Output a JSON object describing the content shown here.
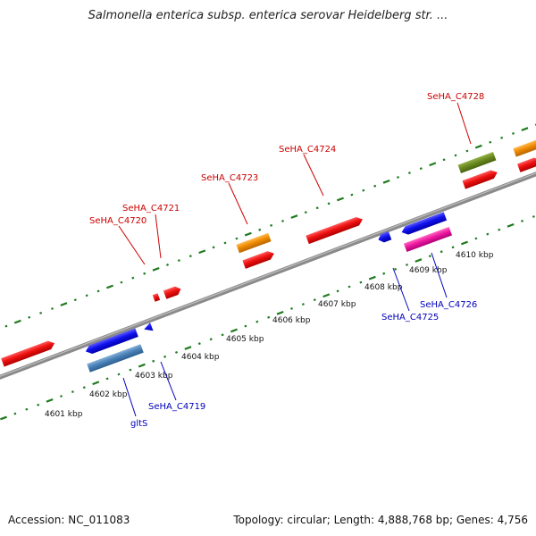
{
  "header": {
    "title": "Salmonella enterica subsp. enterica serovar Heidelberg str. ..."
  },
  "footer": {
    "accession": "Accession: NC_011083",
    "stats": "Topology: circular; Length: 4,888,768 bp; Genes: 4,756"
  },
  "kbp_ticks": [
    "4601 kbp",
    "4602 kbp",
    "4603 kbp",
    "4604 kbp",
    "4605 kbp",
    "4606 kbp",
    "4607 kbp",
    "4608 kbp",
    "4609 kbp",
    "4610 kbp"
  ],
  "genes": {
    "forward": [
      "SeHA_C4720",
      "SeHA_C4721",
      "SeHA_C4723",
      "SeHA_C4724",
      "SeHA_C4728"
    ],
    "reverse": [
      "gltS",
      "SeHA_C4719",
      "SeHA_C4725",
      "SeHA_C4726"
    ]
  },
  "colors": {
    "red": "#ee1111",
    "orange": "#f08c00",
    "olive": "#6b8a1f",
    "blue": "#1111ee",
    "steelblue": "#4a82b8",
    "magenta": "#ee1aa0",
    "backbone": "#8a8a8a",
    "tick": "#1f7a1f",
    "forward_label": "#cc0000",
    "reverse_label": "#0000bb"
  }
}
